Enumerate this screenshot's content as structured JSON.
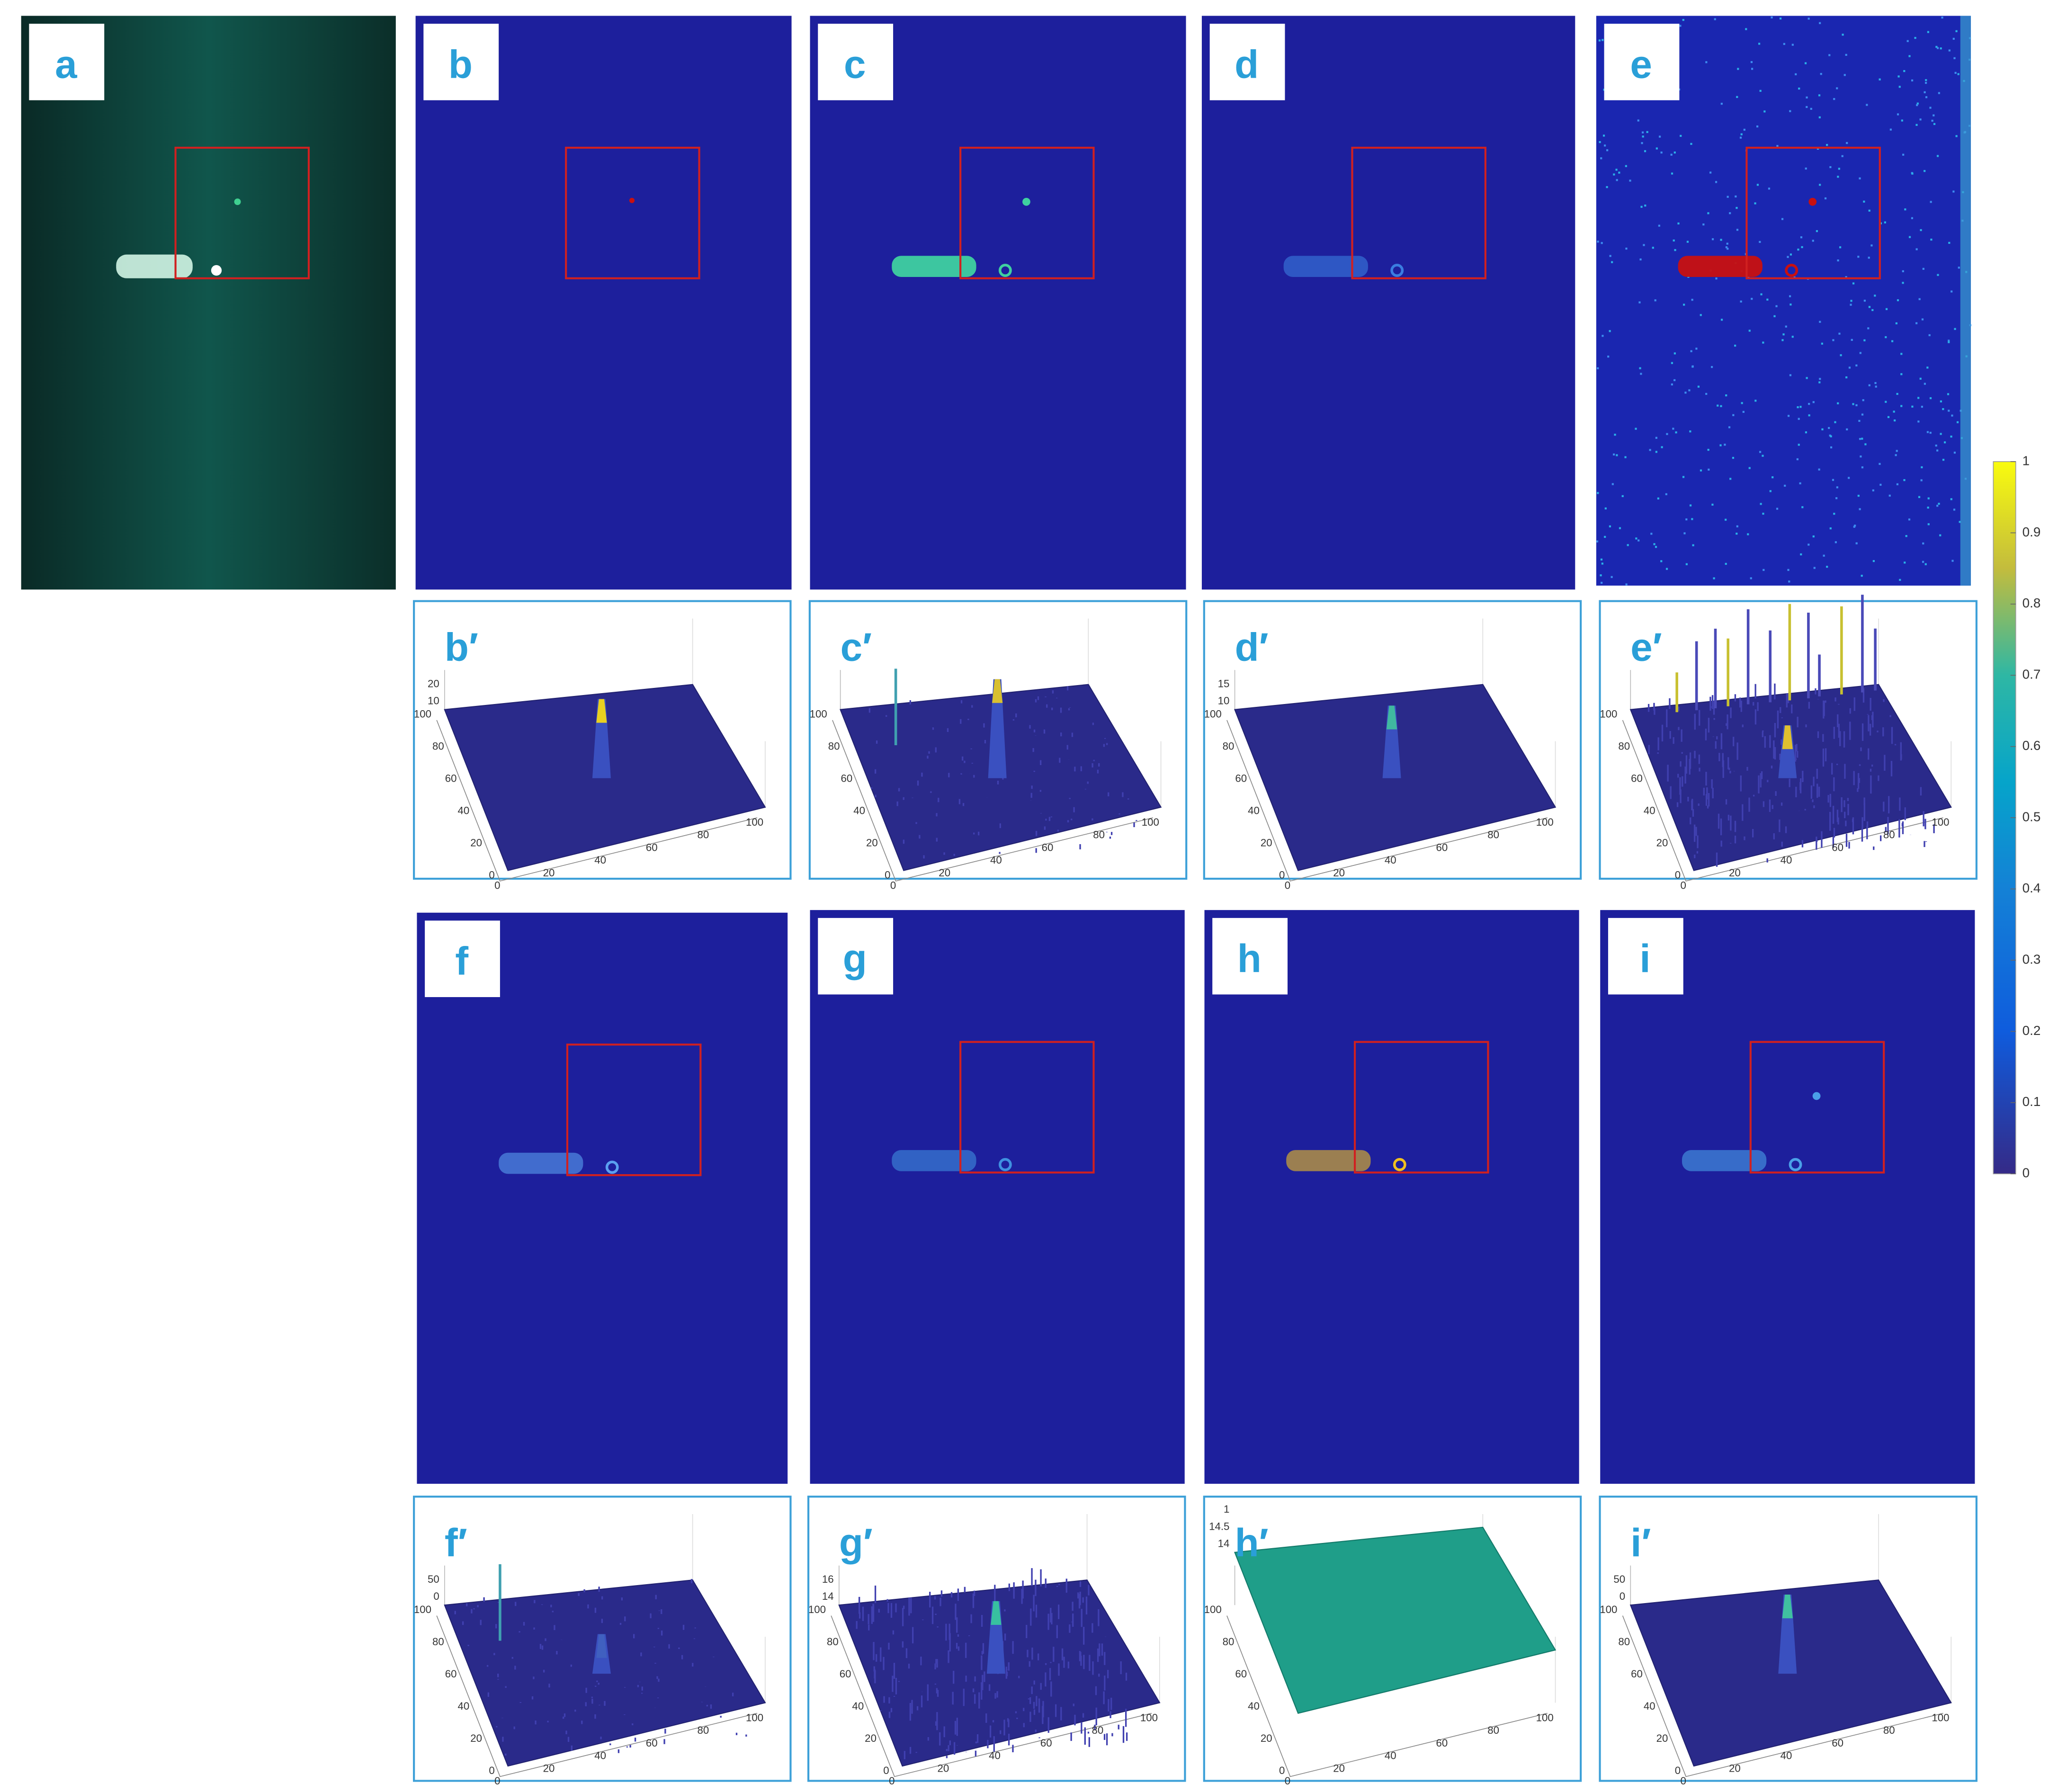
{
  "panels": [
    {
      "label": "a"
    },
    {
      "label": "b"
    },
    {
      "label": "c"
    },
    {
      "label": "d"
    },
    {
      "label": "e"
    },
    {
      "label": "f"
    },
    {
      "label": "g"
    },
    {
      "label": "h"
    },
    {
      "label": "i"
    }
  ],
  "plots": [
    {
      "label": "b′",
      "x_ticks": [
        0,
        20,
        40,
        60,
        80,
        100
      ],
      "y_ticks": [
        0,
        20,
        40,
        60,
        80,
        100
      ],
      "z_ticks": [
        10,
        20
      ]
    },
    {
      "label": "c′",
      "x_ticks": [
        0,
        20,
        40,
        60,
        80,
        100
      ],
      "y_ticks": [
        0,
        20,
        40,
        60,
        80,
        100
      ],
      "z_ticks": []
    },
    {
      "label": "d′",
      "x_ticks": [
        0,
        20,
        40,
        60,
        80,
        100
      ],
      "y_ticks": [
        0,
        20,
        40,
        60,
        80,
        100
      ],
      "z_ticks": [
        10,
        15
      ]
    },
    {
      "label": "e′",
      "x_ticks": [
        0,
        20,
        40,
        60,
        80,
        100
      ],
      "y_ticks": [
        0,
        20,
        40,
        60,
        80,
        100
      ],
      "z_ticks": []
    },
    {
      "label": "f′",
      "x_ticks": [
        0,
        20,
        40,
        60,
        80,
        100
      ],
      "y_ticks": [
        0,
        20,
        40,
        60,
        80,
        100
      ],
      "z_ticks": [
        0,
        50
      ]
    },
    {
      "label": "g′",
      "x_ticks": [
        0,
        20,
        40,
        60,
        80,
        100
      ],
      "y_ticks": [
        0,
        20,
        40,
        60,
        80,
        100
      ],
      "z_ticks": [
        14,
        16
      ]
    },
    {
      "label": "h′",
      "x_ticks": [
        0,
        20,
        40,
        60,
        80,
        100
      ],
      "y_ticks": [
        0,
        20,
        40,
        60,
        80,
        100
      ],
      "z_ticks": [
        14,
        14.5,
        1
      ]
    },
    {
      "label": "i′",
      "x_ticks": [
        0,
        20,
        40,
        60,
        80,
        100
      ],
      "y_ticks": [
        0,
        20,
        40,
        60,
        80,
        100
      ],
      "z_ticks": [
        0,
        50
      ]
    }
  ],
  "colorbar": {
    "ticks": [
      0,
      0.1,
      0.2,
      0.3,
      0.4,
      0.5,
      0.6,
      0.7,
      0.8,
      0.9,
      1
    ]
  }
}
